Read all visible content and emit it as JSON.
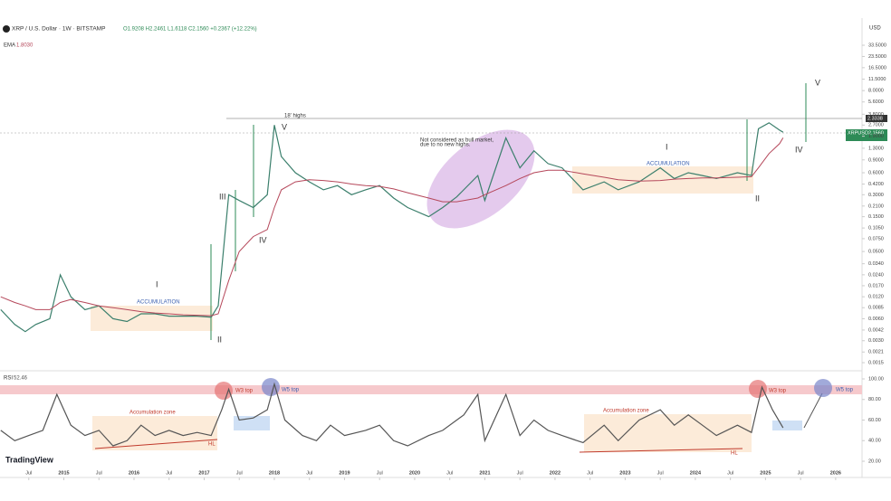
{
  "header": {
    "symbol": "XRP / U.S. Dollar · 1W · BITSTAMP",
    "ohlc": "O1.9208 H2.2461 L1.6118 C2.1560 +0.2367 (+12.22%)",
    "ema_value": "1.8030",
    "currency": "USD",
    "last_price": "2.1560",
    "tag_price": "2.3338",
    "rsi_label": "RSI",
    "rsi_value": "52.46",
    "logo": "TradingView"
  },
  "chart_data": [
    {
      "type": "line",
      "log_scale": true,
      "grid": false,
      "x": [
        2014.1,
        2014.3,
        2014.45,
        2014.6,
        2014.8,
        2014.95,
        2015.1,
        2015.3,
        2015.5,
        2015.7,
        2015.9,
        2016.1,
        2016.3,
        2016.5,
        2016.7,
        2016.9,
        2017.1,
        2017.2,
        2017.35,
        2017.5,
        2017.7,
        2017.9,
        2018.0,
        2018.1,
        2018.3,
        2018.5,
        2018.7,
        2018.9,
        2019.1,
        2019.3,
        2019.5,
        2019.7,
        2019.9,
        2020.2,
        2020.4,
        2020.6,
        2020.9,
        2021.0,
        2021.3,
        2021.5,
        2021.7,
        2021.9,
        2022.1,
        2022.4,
        2022.7,
        2022.9,
        2023.2,
        2023.5,
        2023.7,
        2023.9,
        2024.1,
        2024.3,
        2024.6,
        2024.8,
        2024.9,
        2025.05,
        2025.2,
        2025.25
      ],
      "series": [
        {
          "name": "XRPUSD",
          "color": "#3b7f6c",
          "values": [
            0.008,
            0.005,
            0.004,
            0.005,
            0.006,
            0.024,
            0.012,
            0.008,
            0.009,
            0.006,
            0.0055,
            0.007,
            0.007,
            0.0065,
            0.0065,
            0.0065,
            0.0063,
            0.009,
            0.3,
            0.25,
            0.2,
            0.3,
            2.7,
            1.0,
            0.6,
            0.45,
            0.35,
            0.4,
            0.3,
            0.35,
            0.4,
            0.27,
            0.2,
            0.15,
            0.2,
            0.28,
            0.55,
            0.25,
            1.8,
            0.7,
            1.2,
            0.8,
            0.7,
            0.35,
            0.45,
            0.35,
            0.45,
            0.7,
            0.5,
            0.6,
            0.55,
            0.5,
            0.6,
            0.55,
            2.4,
            2.9,
            2.3,
            2.156
          ]
        },
        {
          "name": "EMA",
          "color": "#b5475a",
          "values": [
            0.012,
            0.01,
            0.009,
            0.008,
            0.008,
            0.01,
            0.011,
            0.01,
            0.009,
            0.0085,
            0.008,
            0.0075,
            0.0072,
            0.007,
            0.0068,
            0.0067,
            0.0066,
            0.007,
            0.02,
            0.05,
            0.08,
            0.1,
            0.2,
            0.35,
            0.45,
            0.48,
            0.47,
            0.45,
            0.42,
            0.4,
            0.39,
            0.36,
            0.32,
            0.27,
            0.24,
            0.24,
            0.27,
            0.3,
            0.4,
            0.5,
            0.6,
            0.65,
            0.65,
            0.58,
            0.52,
            0.48,
            0.46,
            0.47,
            0.49,
            0.5,
            0.51,
            0.51,
            0.52,
            0.53,
            0.7,
            1.1,
            1.5,
            1.803
          ]
        }
      ],
      "xlim": [
        2014.09,
        2026.35
      ],
      "xticks": [
        {
          "value": 2014.5,
          "label": "Jul"
        },
        2015,
        {
          "value": 2015.5,
          "label": "Jul"
        },
        2016,
        {
          "value": 2016.5,
          "label": "Jul"
        },
        2017,
        {
          "value": 2017.5,
          "label": "Jul"
        },
        2018,
        {
          "value": 2018.5,
          "label": "Jul"
        },
        2019,
        {
          "value": 2019.5,
          "label": "Jul"
        },
        2020,
        {
          "value": 2020.5,
          "label": "Jul"
        },
        2021,
        {
          "value": 2021.5,
          "label": "Jul"
        },
        2022,
        {
          "value": 2022.5,
          "label": "Jul"
        },
        2023,
        {
          "value": 2023.5,
          "label": "Jul"
        },
        2024,
        {
          "value": 2024.5,
          "label": "Jul"
        },
        2025,
        {
          "value": 2025.5,
          "label": "Jul"
        },
        2026
      ],
      "ylim": [
        0.00123,
        59.3
      ],
      "yticks": [
        0.0015,
        0.0021,
        {
          "value": 0.003,
          "label": "0.0030"
        },
        0.0042,
        {
          "value": 0.006,
          "label": "0.0060"
        },
        0.0085,
        {
          "value": 0.012,
          "label": "0.0120"
        },
        {
          "value": 0.017,
          "label": "0.0170"
        },
        {
          "value": 0.024,
          "label": "0.0240"
        },
        {
          "value": 0.034,
          "label": "0.0340"
        },
        {
          "value": 0.05,
          "label": "0.0500"
        },
        {
          "value": 0.075,
          "label": "0.0750"
        },
        {
          "value": 0.105,
          "label": "0.1050"
        },
        {
          "value": 0.15,
          "label": "0.1500"
        },
        {
          "value": 0.21,
          "label": "0.2100"
        },
        {
          "value": 0.3,
          "label": "0.3000"
        },
        {
          "value": 0.42,
          "label": "0.4200"
        },
        {
          "value": 0.6,
          "label": "0.6000"
        },
        {
          "value": 0.9,
          "label": "0.9000"
        },
        {
          "value": 1.3,
          "label": "1.3000"
        },
        {
          "value": 1.9,
          "label": "1.9000"
        },
        {
          "value": 2.7,
          "label": "2.7000"
        },
        {
          "value": 3.8,
          "label": "3.8000"
        },
        {
          "value": 5.6,
          "label": "5.6000"
        },
        {
          "value": 8,
          "label": "8.0000"
        },
        {
          "value": 11.5,
          "label": "11.5000"
        },
        {
          "value": 16.5,
          "label": "16.5000"
        },
        {
          "value": 23.5,
          "label": "23.5000"
        },
        {
          "value": 33.5,
          "label": "33.5000"
        }
      ],
      "annotations": [
        "I",
        "II",
        "III",
        "IV",
        "V",
        "18' highs",
        "ACCUMULATION",
        "Not considered as bull market,",
        "due to no new highs.",
        "I",
        "II",
        "IV",
        "V",
        "ACCUMULATION"
      ]
    },
    {
      "type": "line",
      "grid": false,
      "x": [
        2014.1,
        2014.3,
        2014.5,
        2014.7,
        2014.9,
        2015.1,
        2015.3,
        2015.5,
        2015.7,
        2015.9,
        2016.1,
        2016.3,
        2016.5,
        2016.7,
        2016.9,
        2017.1,
        2017.25,
        2017.35,
        2017.5,
        2017.7,
        2017.9,
        2018.0,
        2018.15,
        2018.4,
        2018.6,
        2018.8,
        2019.0,
        2019.3,
        2019.5,
        2019.7,
        2019.9,
        2020.2,
        2020.4,
        2020.7,
        2020.9,
        2021.0,
        2021.3,
        2021.5,
        2021.7,
        2021.9,
        2022.1,
        2022.4,
        2022.7,
        2022.9,
        2023.2,
        2023.5,
        2023.7,
        2023.9,
        2024.1,
        2024.3,
        2024.6,
        2024.8,
        2024.95,
        2025.1,
        2025.25
      ],
      "series": [
        {
          "name": "RSI",
          "color": "#555555",
          "values": [
            50,
            40,
            45,
            50,
            85,
            55,
            45,
            50,
            35,
            40,
            55,
            45,
            50,
            45,
            48,
            45,
            70,
            90,
            60,
            62,
            70,
            95,
            60,
            45,
            40,
            55,
            45,
            50,
            55,
            40,
            35,
            45,
            50,
            65,
            85,
            40,
            85,
            45,
            60,
            50,
            45,
            38,
            55,
            40,
            60,
            70,
            55,
            65,
            55,
            45,
            55,
            48,
            92,
            70,
            52.46
          ]
        }
      ],
      "xlim": [
        2014.09,
        2026.35
      ],
      "ylim": [
        4.2,
        107.9
      ],
      "yticks": [
        {
          "value": 20,
          "label": "20.00"
        },
        {
          "value": 40,
          "label": "40.00"
        },
        {
          "value": 60,
          "label": "60.00"
        },
        {
          "value": 80,
          "label": "80.00"
        },
        {
          "value": 100,
          "label": "100.00"
        }
      ],
      "annotations": [
        "W3 top",
        "W5 top",
        "Accumulation zone",
        "HL",
        "Accumulation zone",
        "HL",
        "W3 top",
        "W5 top"
      ]
    }
  ]
}
